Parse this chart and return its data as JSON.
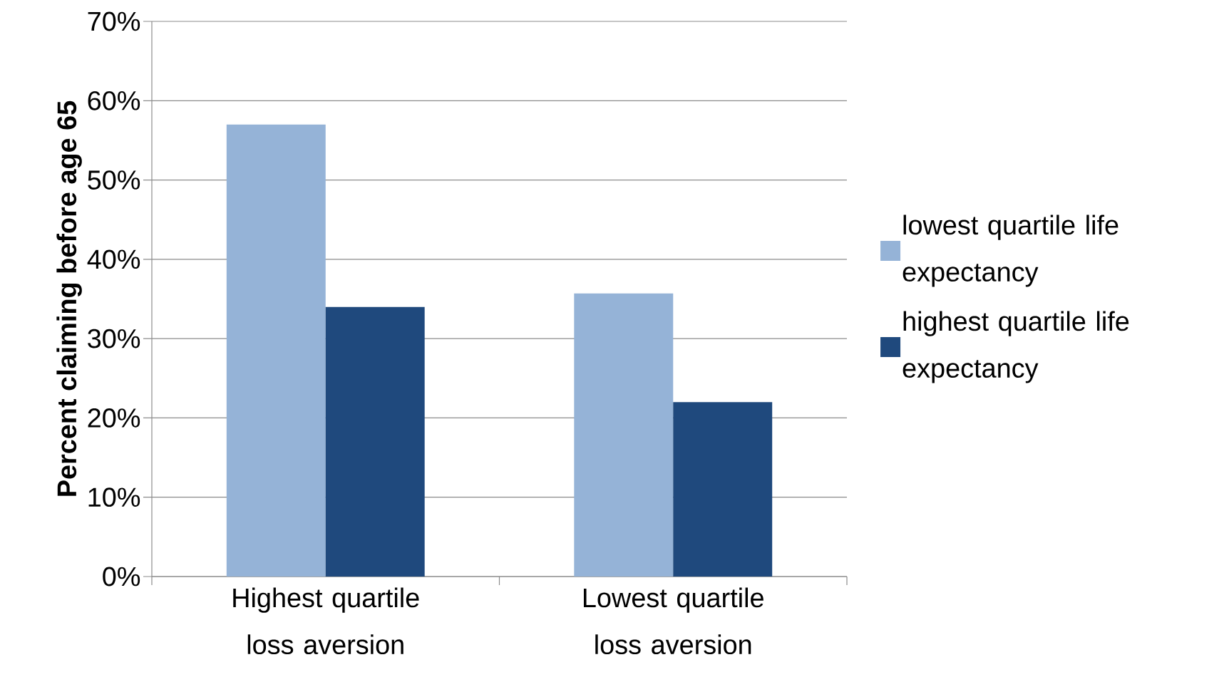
{
  "chart_data": {
    "type": "bar",
    "ylabel": "Percent claiming before age 65",
    "categories": [
      "Highest quartile loss aversion",
      "Lowest quartile loss aversion"
    ],
    "series": [
      {
        "name": "lowest quartile life expectancy",
        "color": "#95b3d7",
        "values": [
          57,
          35.7
        ]
      },
      {
        "name": "highest quartile life expectancy",
        "color": "#1f497d",
        "values": [
          34,
          22
        ]
      }
    ],
    "ylim": [
      0,
      70
    ],
    "yticks": [
      {
        "value": 0,
        "label": "0%"
      },
      {
        "value": 10,
        "label": "10%"
      },
      {
        "value": 20,
        "label": "20%"
      },
      {
        "value": 30,
        "label": "30%"
      },
      {
        "value": 40,
        "label": "40%"
      },
      {
        "value": 50,
        "label": "50%"
      },
      {
        "value": 60,
        "label": "60%"
      },
      {
        "value": 70,
        "label": "70%"
      }
    ],
    "grid": "y",
    "legend": "right"
  }
}
